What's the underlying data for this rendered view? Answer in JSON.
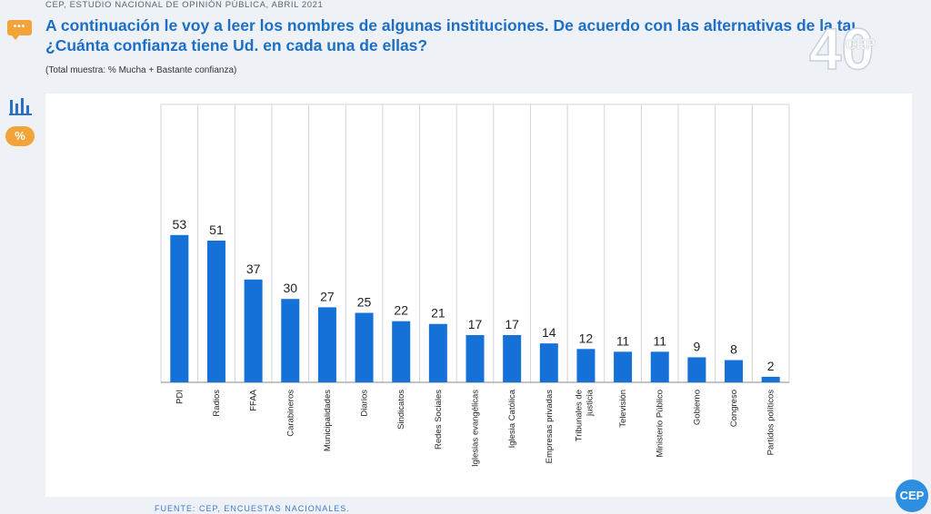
{
  "header": {
    "caption": "CEP, ESTUDIO NACIONAL DE OPINIÓN PÚBLICA, ABRIL 2021",
    "question_line1": "A continuación le voy a leer los nombres de algunas instituciones. De acuerdo con las alternativas de la tarjeta",
    "question_line2": "¿Cuánta confianza tiene Ud. en cada una de ellas?",
    "note": "(Total muestra: % Mucha + Bastante confianza)",
    "logo_number": "40",
    "logo_text": "CEP"
  },
  "side": {
    "percent_label": "%"
  },
  "footer": {
    "source": "FUENTE: CEP, ENCUESTAS NACIONALES.",
    "badge": "CEP"
  },
  "colors": {
    "bar": "#1570d8",
    "title": "#1c6fc4",
    "accent": "#f2a33a"
  },
  "chart_data": {
    "type": "bar",
    "title": "",
    "xlabel": "",
    "ylabel": "",
    "ylim": [
      0,
      100
    ],
    "grid": "vertical",
    "categories": [
      "PDI",
      "Radios",
      "FFAA",
      "Carabineros",
      "Municipalidades",
      "Diarios",
      "Sindicatos",
      "Redes Sociales",
      "Iglesias evangélicas",
      "Iglesia Católica",
      "Empresas privadas",
      "Tribunales de justicia",
      "Televisión",
      "Ministerio Público",
      "Gobierno",
      "Congreso",
      "Partidos políticos"
    ],
    "values": [
      53,
      51,
      37,
      30,
      27,
      25,
      22,
      21,
      17,
      17,
      14,
      12,
      11,
      11,
      9,
      8,
      2
    ]
  }
}
